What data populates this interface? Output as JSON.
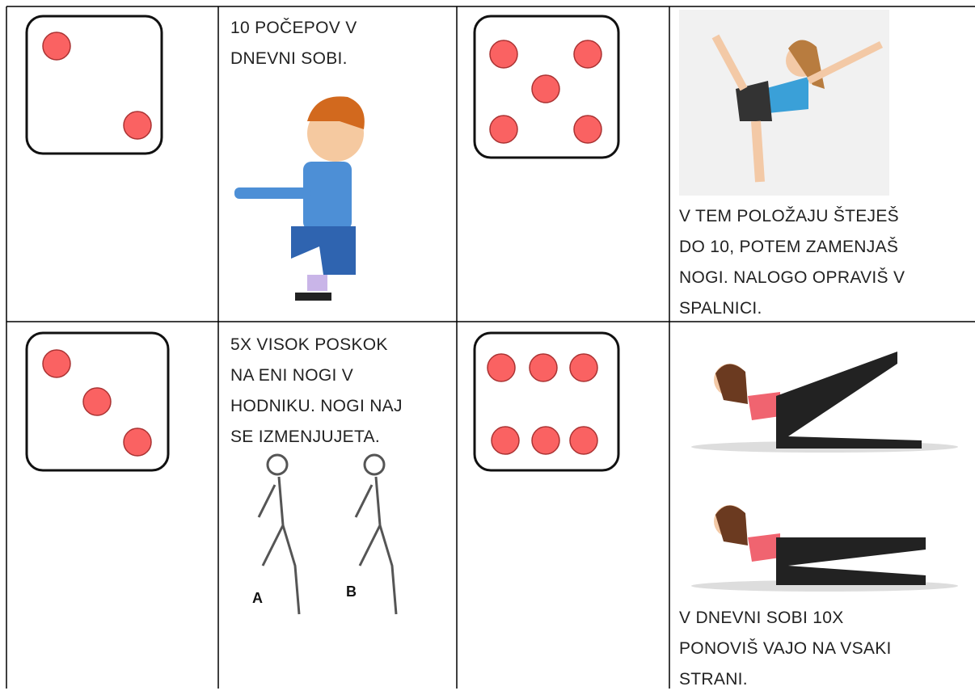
{
  "table": {
    "rows": [
      [
        {
          "text": []
        },
        {
          "text": [
            "10 POČEPOV V",
            "DNEVNI SOBI."
          ]
        },
        {
          "text": []
        },
        {
          "text": [
            "V TEM POLOŽAJU ŠTEJEŠ",
            "DO 10, POTEM ZAMENJAŠ",
            "NOGI. NALOGO OPRAVIŠ V",
            "SPALNICI."
          ]
        }
      ],
      [
        {
          "text": []
        },
        {
          "text": [
            "5X VISOK POSKOK",
            "NA ENI NOGI V",
            "HODNIKU. NOGI NAJ",
            "SE IZMENJUJETA."
          ],
          "figure_labels": [
            "A",
            "B"
          ]
        },
        {
          "text": []
        },
        {
          "text": [
            "V DNEVNI SOBI 10X",
            "PONOVIŠ VAJO NA VSAKI",
            "STRANI."
          ]
        }
      ]
    ]
  }
}
